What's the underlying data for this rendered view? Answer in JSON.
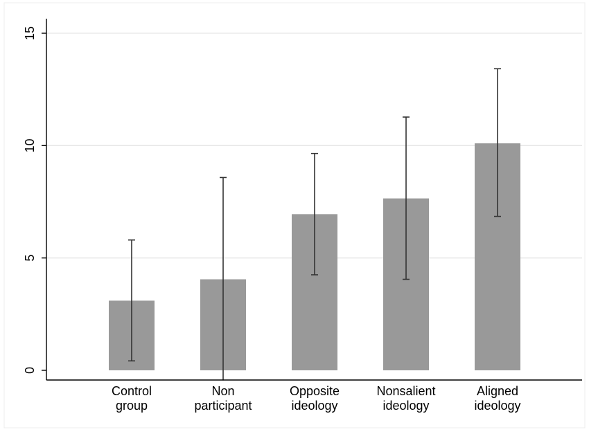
{
  "chart_data": {
    "type": "bar",
    "title": "",
    "xlabel": "",
    "ylabel": "",
    "ylim": [
      0,
      15
    ],
    "yticks": [
      0,
      5,
      10,
      15
    ],
    "grid": true,
    "categories": [
      [
        "Control",
        "group"
      ],
      [
        "Non",
        "participant"
      ],
      [
        "Opposite",
        "ideology"
      ],
      [
        "Nonsalient",
        "ideology"
      ],
      [
        "Aligned",
        "ideology"
      ]
    ],
    "values": [
      3.1,
      4.05,
      6.95,
      7.65,
      10.1
    ],
    "error_low": [
      0.42,
      -0.45,
      4.25,
      4.05,
      6.85
    ],
    "error_high": [
      5.8,
      8.58,
      9.65,
      11.27,
      13.42
    ],
    "colors": {
      "bar": "#999999",
      "error_bar": "#333333",
      "grid": "#e6e6e6",
      "axis": "#000000",
      "frame": "#ececec"
    }
  }
}
